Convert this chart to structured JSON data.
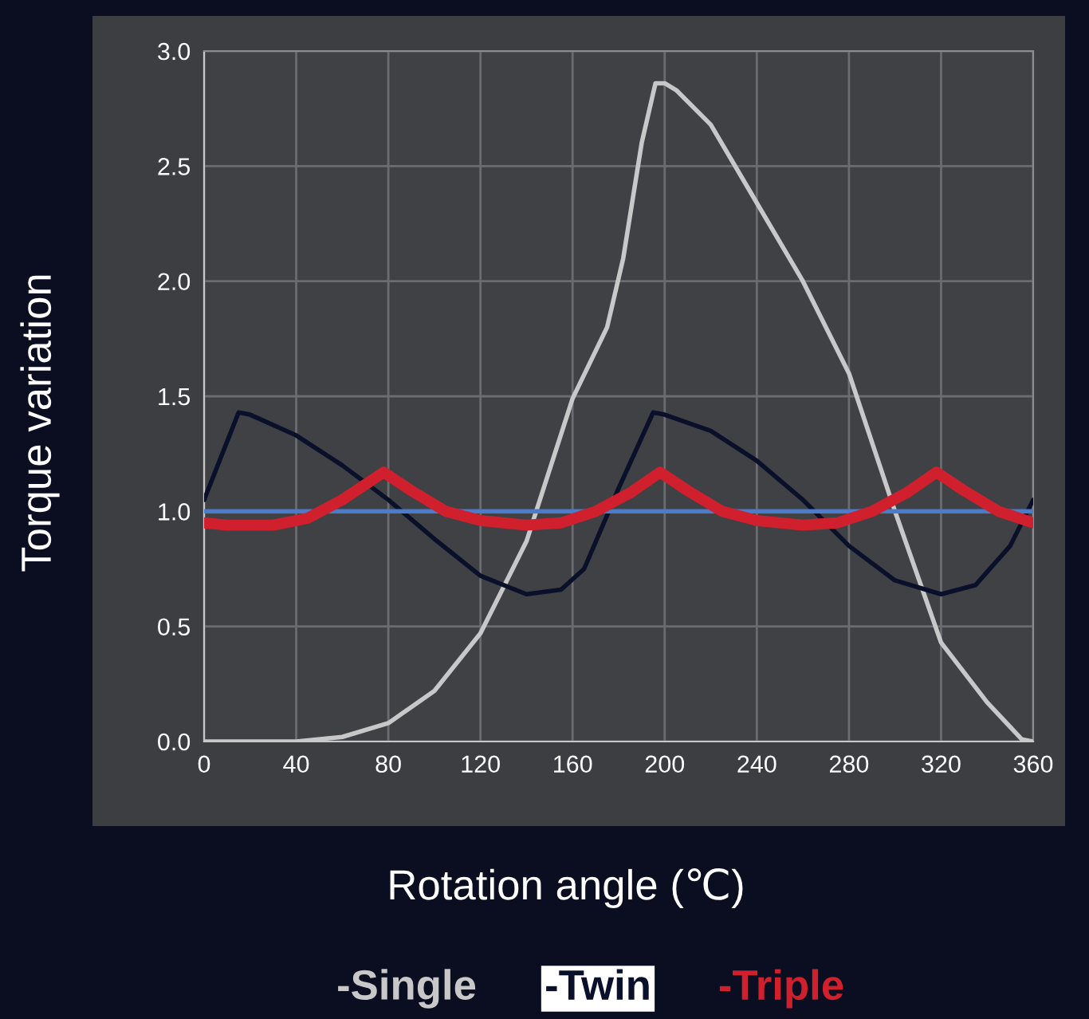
{
  "chart_data": {
    "type": "line",
    "xlabel": "Rotation angle (℃)",
    "ylabel": "Torque variation",
    "xlim": [
      0,
      360
    ],
    "xticks": [
      0,
      40,
      80,
      120,
      160,
      200,
      240,
      280,
      320,
      360
    ],
    "ylim": [
      0,
      3.0
    ],
    "yticks": [
      {
        "value": 0,
        "label": "0.0"
      },
      {
        "value": 0.5,
        "label": "0.5"
      },
      {
        "value": 1.0,
        "label": "1.0"
      },
      {
        "value": 1.5,
        "label": "1.5"
      },
      {
        "value": 2.0,
        "label": "2.0"
      },
      {
        "value": 2.5,
        "label": "2.5"
      },
      {
        "value": 3.0,
        "label": "3.0"
      }
    ],
    "grid": true,
    "legend": "bottom",
    "marker": "none",
    "line_style": "solid",
    "ref_lines": [
      {
        "axis": "y",
        "value": 1.0,
        "color": "#4a7cc9"
      }
    ],
    "series": [
      {
        "name": "-Single",
        "color": "#c8c8c8",
        "x": [
          0,
          20,
          40,
          60,
          80,
          100,
          120,
          140,
          160,
          175,
          182,
          190,
          196,
          200,
          205,
          220,
          240,
          260,
          280,
          300,
          320,
          340,
          355,
          360
        ],
        "values": [
          0,
          0,
          0,
          0.02,
          0.08,
          0.22,
          0.47,
          0.87,
          1.49,
          1.8,
          2.1,
          2.6,
          2.86,
          2.86,
          2.83,
          2.68,
          2.34,
          2.0,
          1.6,
          1.0,
          0.43,
          0.17,
          0.01,
          0
        ]
      },
      {
        "name": "-Twin",
        "color": "#0a0f2a",
        "x": [
          0,
          15,
          20,
          40,
          60,
          80,
          100,
          120,
          140,
          155,
          165,
          180,
          195,
          200,
          220,
          240,
          260,
          280,
          300,
          320,
          335,
          350,
          360
        ],
        "values": [
          1.05,
          1.43,
          1.42,
          1.33,
          1.2,
          1.05,
          0.88,
          0.72,
          0.64,
          0.66,
          0.75,
          1.1,
          1.43,
          1.42,
          1.35,
          1.22,
          1.05,
          0.85,
          0.7,
          0.64,
          0.68,
          0.85,
          1.05
        ]
      },
      {
        "name": "-Triple",
        "color": "#d0202e",
        "x": [
          0,
          10,
          30,
          45,
          60,
          78,
          90,
          105,
          120,
          140,
          155,
          170,
          185,
          198,
          210,
          225,
          240,
          260,
          275,
          290,
          305,
          318,
          330,
          345,
          360
        ],
        "values": [
          0.95,
          0.94,
          0.94,
          0.97,
          1.05,
          1.17,
          1.09,
          1.0,
          0.96,
          0.94,
          0.95,
          1.0,
          1.08,
          1.17,
          1.09,
          1.0,
          0.96,
          0.94,
          0.95,
          1.0,
          1.08,
          1.17,
          1.09,
          1.0,
          0.95
        ]
      }
    ]
  }
}
